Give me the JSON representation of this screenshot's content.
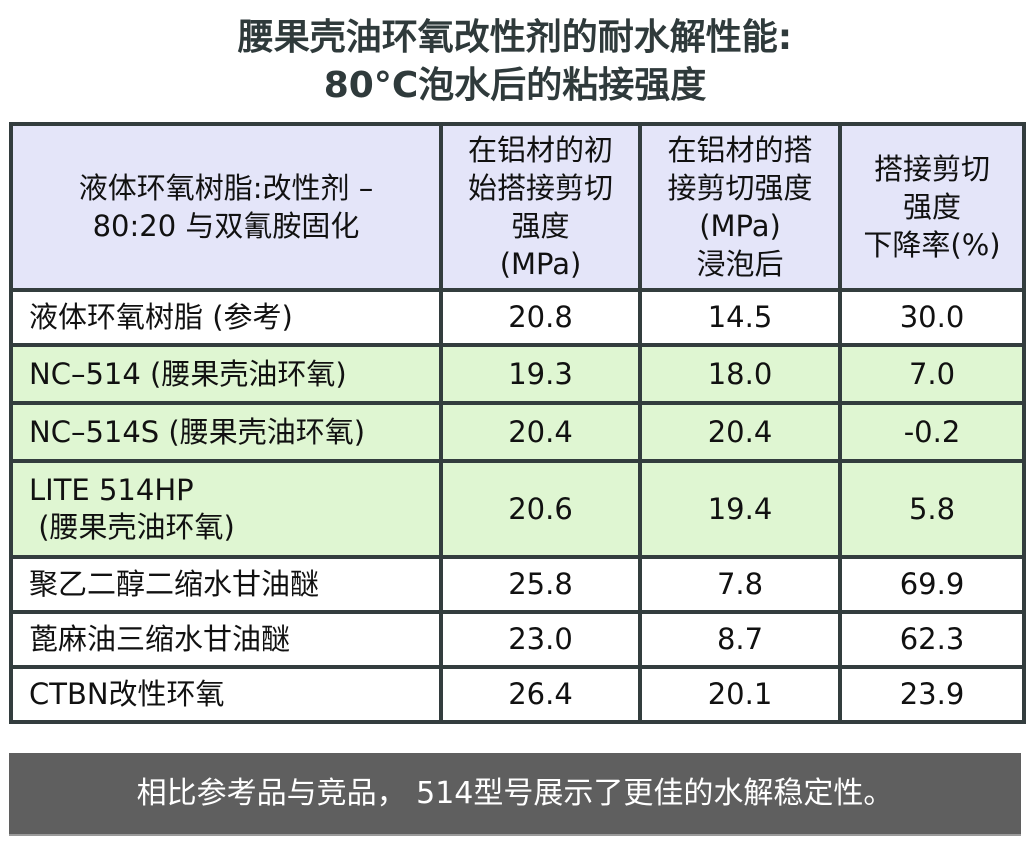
{
  "title": {
    "line1": "腰果壳油环氧改性剂的耐水解性能:",
    "line2": "80°C泡水后的粘接强度"
  },
  "table": {
    "headers": [
      [
        "液体环氧树脂:改性剂 –",
        "80:20 与双氰胺固化"
      ],
      [
        "在铝材的初",
        "始搭接剪切",
        "强度",
        "(MPa)"
      ],
      [
        "在铝材的搭",
        "接剪切强度",
        "(MPa)",
        "浸泡后"
      ],
      [
        "搭接剪切",
        "强度",
        "下降率(%)"
      ]
    ],
    "rows": [
      {
        "name": [
          "液体环氧树脂 (参考)"
        ],
        "initial": "20.8",
        "after": "14.5",
        "drop": "30.0",
        "highlight": false
      },
      {
        "name": [
          "NC–514 (腰果壳油环氧)"
        ],
        "initial": "19.3",
        "after": "18.0",
        "drop": "7.0",
        "highlight": true
      },
      {
        "name": [
          "NC–514S (腰果壳油环氧)"
        ],
        "initial": "20.4",
        "after": "20.4",
        "drop": "-0.2",
        "highlight": true
      },
      {
        "name": [
          "LITE 514HP",
          " (腰果壳油环氧)"
        ],
        "initial": "20.6",
        "after": "19.4",
        "drop": "5.8",
        "highlight": true
      },
      {
        "name": [
          "聚乙二醇二缩水甘油醚"
        ],
        "initial": "25.8",
        "after": "7.8",
        "drop": "69.9",
        "highlight": false
      },
      {
        "name": [
          "蓖麻油三缩水甘油醚"
        ],
        "initial": "23.0",
        "after": "8.7",
        "drop": "62.3",
        "highlight": false
      },
      {
        "name": [
          "CTBN改性环氧"
        ],
        "initial": "26.4",
        "after": "20.1",
        "drop": "23.9",
        "highlight": false
      }
    ]
  },
  "footer": {
    "text": "相比参考品与竞品， 514型号展示了更佳的水解稳定性。"
  },
  "colors": {
    "title_text": "#2f3a3b",
    "border": "#333d3e",
    "header_bg": "#e4e5f9",
    "highlight_row_bg": "#dff6d2",
    "footer_bg": "#5f5f5f",
    "footer_text": "#ffffff"
  }
}
